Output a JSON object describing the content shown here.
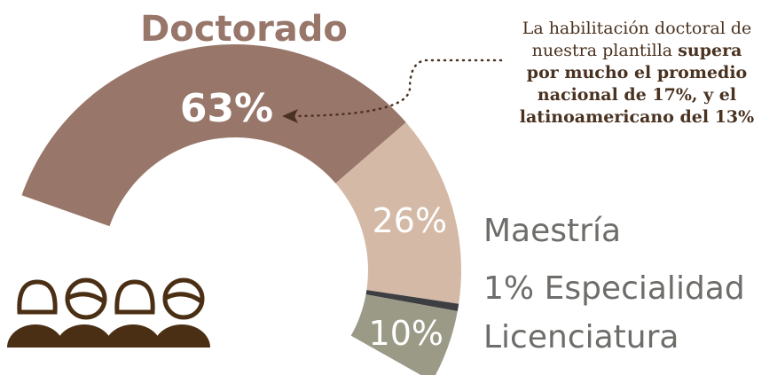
{
  "chart_data": {
    "type": "donut",
    "categories": [
      "Doctorado",
      "Maestría",
      "Especialidad",
      "Licenciatura"
    ],
    "values": [
      63,
      26,
      1,
      10
    ],
    "value_labels": [
      "63%",
      "26%",
      "1%",
      "10%"
    ],
    "colors": [
      "#98766a",
      "#d4b9a6",
      "#3d3e42",
      "#9b9a87"
    ],
    "annotation": [
      {
        "regular": "La habilitación doctoral de"
      },
      {
        "regular": "nuestra plantilla",
        "bold": "supera"
      },
      {
        "bold": "por mucho el promedio"
      },
      {
        "bold": "nacional de 17%, y el"
      },
      {
        "bold": "latinoamericano del 13%"
      }
    ]
  }
}
